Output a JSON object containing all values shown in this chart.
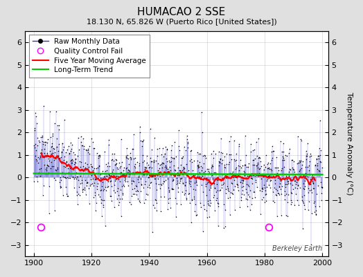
{
  "title": "HUMACAO 2 SSE",
  "subtitle": "18.130 N, 65.826 W (Puerto Rico [United States])",
  "ylabel": "Temperature Anomaly (°C)",
  "watermark": "Berkeley Earth",
  "xlim": [
    1897,
    2002
  ],
  "ylim": [
    -3.5,
    6.5
  ],
  "yticks": [
    -3,
    -2,
    -1,
    0,
    1,
    2,
    3,
    4,
    5,
    6
  ],
  "xticks": [
    1900,
    1920,
    1940,
    1960,
    1980,
    2000
  ],
  "year_start": 1900,
  "year_end": 2000,
  "background_color": "#e0e0e0",
  "plot_bg_color": "#ffffff",
  "raw_line_color": "#3333cc",
  "raw_dot_color": "#000000",
  "moving_avg_color": "#ff0000",
  "trend_color": "#00cc00",
  "qc_fail_color": "#ff00ff",
  "qc_fail_years": [
    1902.5,
    1981.5
  ],
  "qc_fail_values": [
    -2.2,
    -2.2
  ],
  "random_seed": 17,
  "n_months": 1200,
  "moving_avg_window": 60
}
